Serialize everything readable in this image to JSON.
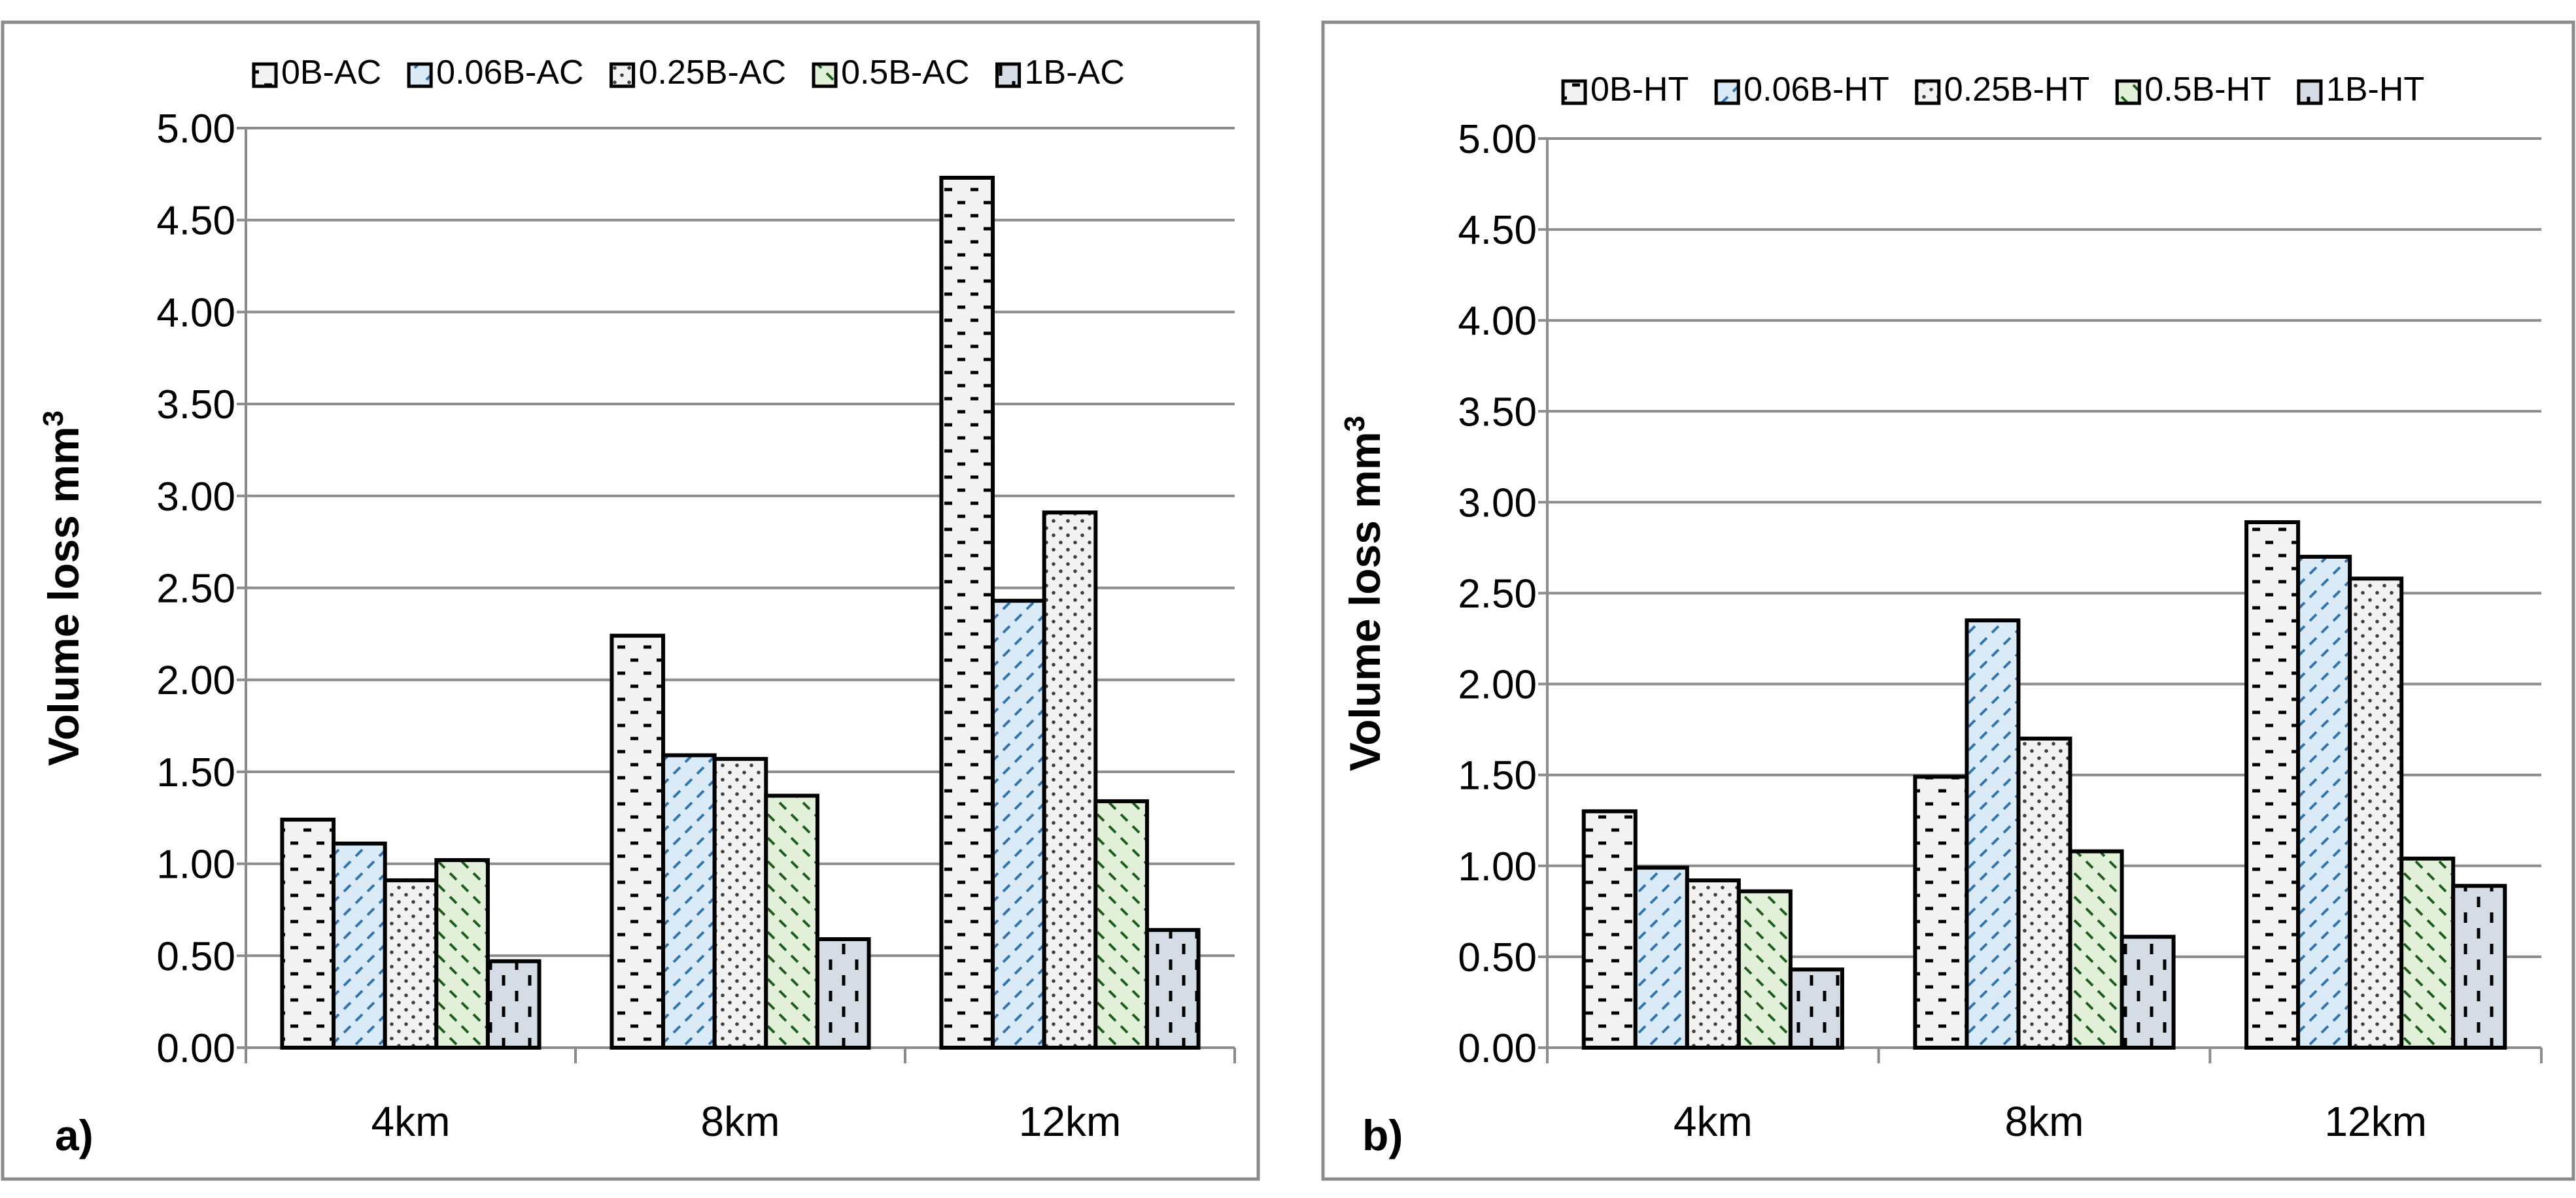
{
  "chart_data": [
    {
      "type": "bar",
      "panel_label": "a)",
      "title": "",
      "xlabel": "",
      "ylabel": "Volume loss mm",
      "ylabel_superscript": "3",
      "ylim": [
        0,
        5
      ],
      "yticks": [
        "0.00",
        "0.50",
        "1.00",
        "1.50",
        "2.00",
        "2.50",
        "3.00",
        "3.50",
        "4.00",
        "4.50",
        "5.00"
      ],
      "grid": true,
      "legend_position": "top",
      "categories": [
        "4km",
        "8km",
        "12km"
      ],
      "series": [
        {
          "name": "0B-AC",
          "values": [
            1.24,
            2.24,
            4.73
          ]
        },
        {
          "name": "0.06B-AC",
          "values": [
            1.11,
            1.59,
            2.43
          ]
        },
        {
          "name": "0.25B-AC",
          "values": [
            0.91,
            1.57,
            2.91
          ]
        },
        {
          "name": "0.5B-AC",
          "values": [
            1.02,
            1.37,
            1.34
          ]
        },
        {
          "name": "1B-AC",
          "values": [
            0.47,
            0.59,
            0.64
          ]
        }
      ]
    },
    {
      "type": "bar",
      "panel_label": "b)",
      "title": "",
      "xlabel": "",
      "ylabel": "Volume loss mm",
      "ylabel_superscript": "3",
      "ylim": [
        0,
        5
      ],
      "yticks": [
        "0.00",
        "0.50",
        "1.00",
        "1.50",
        "2.00",
        "2.50",
        "3.00",
        "3.50",
        "4.00",
        "4.50",
        "5.00"
      ],
      "grid": true,
      "legend_position": "top",
      "categories": [
        "4km",
        "8km",
        "12km"
      ],
      "series": [
        {
          "name": "0B-HT",
          "values": [
            1.3,
            1.49,
            2.89
          ]
        },
        {
          "name": "0.06B-HT",
          "values": [
            0.99,
            2.35,
            2.7
          ]
        },
        {
          "name": "0.25B-HT",
          "values": [
            0.92,
            1.7,
            2.58
          ]
        },
        {
          "name": "0.5B-HT",
          "values": [
            0.86,
            1.08,
            1.04
          ]
        },
        {
          "name": "1B-HT",
          "values": [
            0.43,
            0.61,
            0.89
          ]
        }
      ]
    }
  ],
  "series_styles": [
    {
      "fill": "#f2f2f2",
      "pattern": "dashes",
      "pattern_color": "#000000"
    },
    {
      "fill": "#dbeaf7",
      "pattern": "diag-dashes",
      "pattern_color": "#2e75b6"
    },
    {
      "fill": "#f2f2f2",
      "pattern": "dots",
      "pattern_color": "#404040"
    },
    {
      "fill": "#e2f0d9",
      "pattern": "diag-dashes-rev",
      "pattern_color": "#1f5c1f"
    },
    {
      "fill": "#d6dce5",
      "pattern": "vdashes",
      "pattern_color": "#000000"
    }
  ]
}
